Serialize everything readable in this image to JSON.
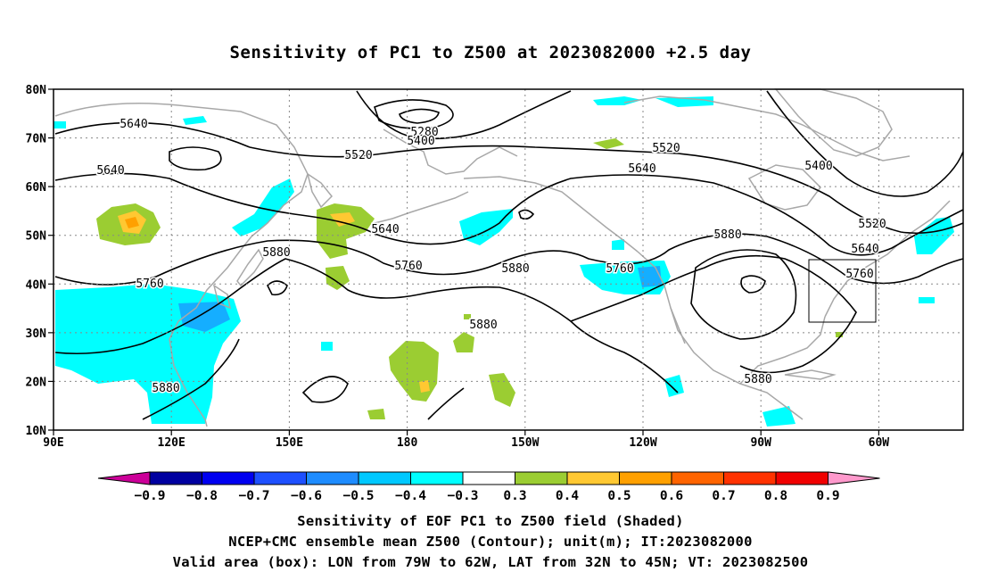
{
  "title": "Sensitivity of PC1 to Z500 at 2023082000 +2.5 day",
  "map": {
    "lat_labels": [
      "80N",
      "70N",
      "60N",
      "50N",
      "40N",
      "30N",
      "20N",
      "10N"
    ],
    "lon_labels": [
      "90E",
      "120E",
      "150E",
      "180",
      "150W",
      "120W",
      "90W",
      "60W"
    ],
    "contour_labels": [
      "5280",
      "5400",
      "5520",
      "5640",
      "5760",
      "5880"
    ],
    "valid_box": {
      "lon_west": -79,
      "lon_east": -62,
      "lat_south": 32,
      "lat_north": 45
    }
  },
  "colorbar": {
    "ticks": [
      "−0.9",
      "−0.8",
      "−0.7",
      "−0.6",
      "−0.5",
      "−0.4",
      "−0.3",
      "0.3",
      "0.4",
      "0.5",
      "0.6",
      "0.7",
      "0.8",
      "0.9"
    ],
    "colors": [
      "#0000a0",
      "#0000f0",
      "#1e50ff",
      "#1e8cff",
      "#00c8ff",
      "#00ffff",
      "#ffffff",
      "#9bcd32",
      "#ffc832",
      "#ffa000",
      "#ff6400",
      "#ff3200",
      "#f00000"
    ],
    "low_color": "#cc0099",
    "high_color": "#ff99cc"
  },
  "captions": {
    "line1": "Sensitivity of EOF PC1 to Z500 field (Shaded)",
    "line2": "NCEP+CMC ensemble mean Z500 (Contour); unit(m); IT:2023082000",
    "line3": "Valid area (box): LON from 79W to 62W, LAT from 32N to 45N; VT: 2023082500"
  }
}
